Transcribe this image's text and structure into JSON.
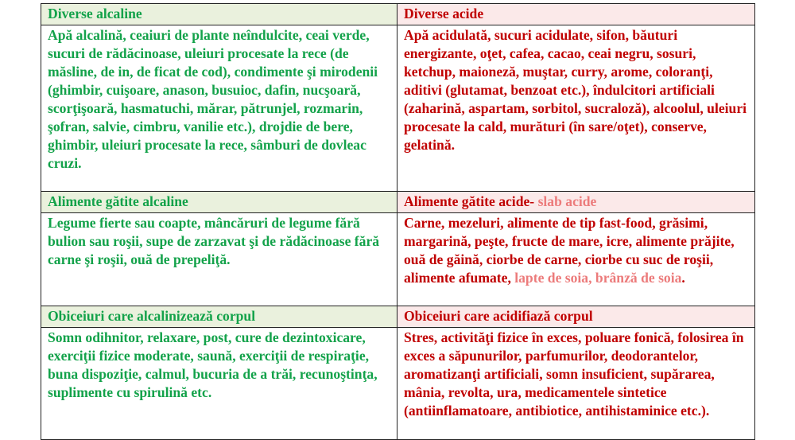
{
  "sections": [
    {
      "alkaline_header": "Diverse alcaline",
      "acid_header": "Diverse acide",
      "acid_header_suffix": "",
      "alkaline_text": "Apă alcalină, ceaiuri de plante neîndulcite, ceai verde, sucuri de rădăcinoase, uleiuri procesate la rece (de măsline, de in, de ficat de cod), condimente şi mirodenii (ghimbir, cuişoare, anason, busuioc, dafin, nucşoară, scorţişoară, hasmatuchi, mărar, pătrunjel, rozmarin, şofran, salvie, cimbru, vanilie etc.), drojdie de bere, ghimbir, uleiuri procesate la rece, sâmburi de dovleac cruzi.",
      "acid_text": "Apă acidulată, sucuri acidulate, sifon, băuturi energizante, oţet, cafea, cacao, ceai negru, sosuri, ketchup, maioneză, muştar, curry, arome, coloranţi, aditivi (glutamat, benzoat etc.), îndulcitori artificiali (zaharină, aspartam, sorbitol, sucraloză), alcoolul, uleiuri procesate la cald, murături (în sare/oţet), conserve, gelatină.",
      "acid_text_weak": "",
      "acid_text_end": ""
    },
    {
      "alkaline_header": "Alimente gătite alcaline",
      "acid_header": "Alimente gătite acide- ",
      "acid_header_suffix": "slab acide",
      "alkaline_text": "Legume fierte sau coapte, mâncăruri de legume fără bulion sau roşii, supe de zarzavat şi de rădăcinoase fără carne şi roşii, ouă de prepeliţă.",
      "acid_text": "Carne, mezeluri, alimente de tip fast-food, grăsimi, margarină, peşte, fructe de mare, icre, alimente prăjite, ouă de găină, ciorbe de carne, ciorbe cu suc de roşii, alimente afumate, ",
      "acid_text_weak": "lapte de soia, brânză de soia",
      "acid_text_end": "."
    },
    {
      "alkaline_header": "Obiceiuri care alcalinizează corpul",
      "acid_header": "Obiceiuri care acidifiază corpul",
      "acid_header_suffix": "",
      "alkaline_text": "Somn odihnitor, relaxare, post, cure de dezintoxicare, exerciţii fizice moderate, saună, exerciţii de respiraţie, buna dispoziţie, calmul, bucuria de a trăi, recunoştinţa, suplimente cu spirulină etc.",
      "acid_text": "Stres, activităţi fizice în exces, poluare fonică, folosirea în exces a săpunurilor, parfumurilor, deodorantelor, aromatizanţi artificiali, somn insuficient, supărarea, mânia, revolta, ura, medicamentele sintetice (antiinflamatoare, antibiotice, antihistaminice etc.).",
      "acid_text_weak": "",
      "acid_text_end": ""
    }
  ],
  "colors": {
    "alkaline_text": "#13a24a",
    "alkaline_header_bg": "#eaf1dd",
    "acid_text": "#c00000",
    "acid_header_bg": "#fbe9e9",
    "weak_acid_text": "#ec7b7b"
  }
}
